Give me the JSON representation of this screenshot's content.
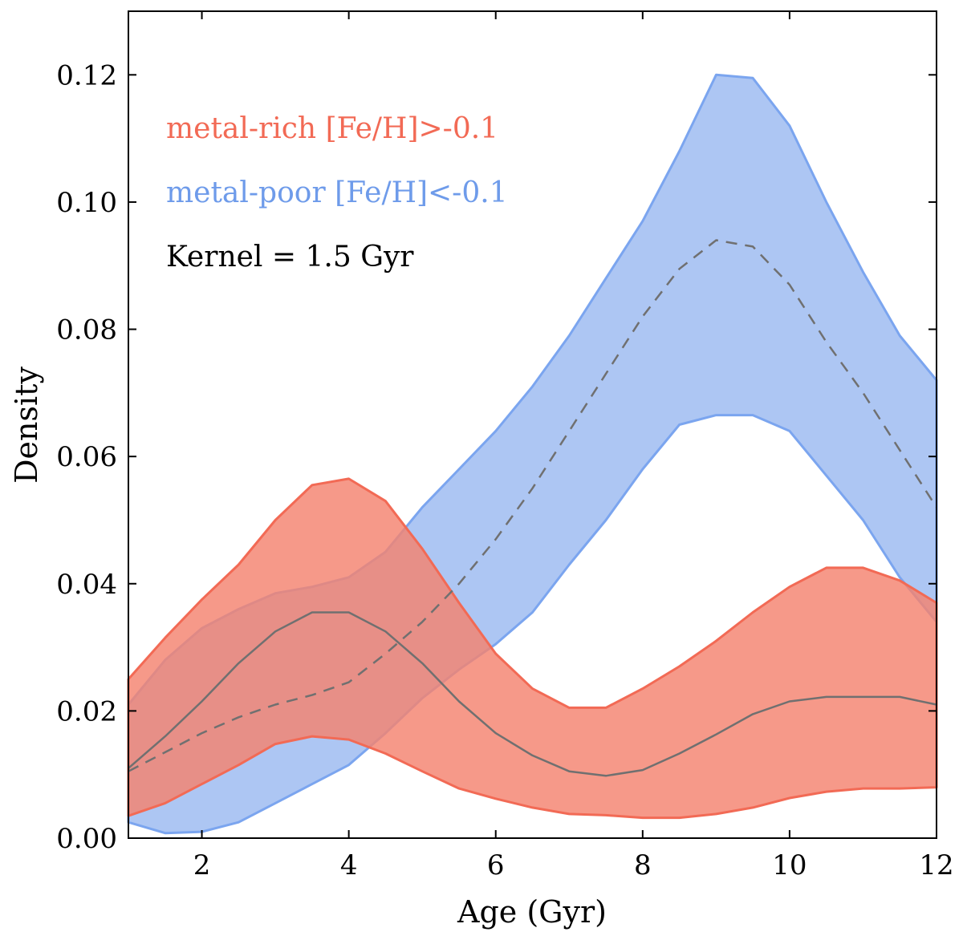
{
  "chart_data": {
    "type": "area",
    "title": "",
    "xlabel": "Age (Gyr)",
    "ylabel": "Density",
    "xlim": [
      1,
      12
    ],
    "ylim": [
      0,
      0.13
    ],
    "xticks": [
      2,
      4,
      6,
      8,
      10,
      12
    ],
    "xtick_labels": [
      "2",
      "4",
      "6",
      "8",
      "10",
      "12"
    ],
    "yticks": [
      0.0,
      0.02,
      0.04,
      0.06,
      0.08,
      0.1,
      0.12
    ],
    "ytick_labels": [
      "0.00",
      "0.02",
      "0.04",
      "0.06",
      "0.08",
      "0.10",
      "0.12"
    ],
    "grid": false,
    "annotations": [
      {
        "text": "metal-rich [Fe/H]>-0.1",
        "color": "#f26a55"
      },
      {
        "text": "metal-poor [Fe/H]<-0.1",
        "color": "#6e9bea"
      },
      {
        "text": "Kernel = 1.5 Gyr",
        "color": "#000000"
      }
    ],
    "series": [
      {
        "name": "metal-poor [Fe/H]<-0.1",
        "fill": "#a9c3f2",
        "edge": "#7ba5ef",
        "x": [
          1,
          1.5,
          2,
          2.5,
          3,
          3.5,
          4,
          4.5,
          5,
          5.5,
          6,
          6.5,
          7,
          7.5,
          8,
          8.5,
          9,
          9.5,
          10,
          10.5,
          11,
          11.5,
          12
        ],
        "upper": [
          0.021,
          0.028,
          0.033,
          0.036,
          0.0385,
          0.0395,
          0.041,
          0.045,
          0.052,
          0.058,
          0.064,
          0.071,
          0.079,
          0.088,
          0.097,
          0.108,
          0.12,
          0.1195,
          0.112,
          0.1,
          0.089,
          0.079,
          0.072
        ],
        "median": [
          0.0105,
          0.0135,
          0.0165,
          0.019,
          0.021,
          0.0225,
          0.0245,
          0.029,
          0.034,
          0.04,
          0.047,
          0.055,
          0.064,
          0.073,
          0.082,
          0.0895,
          0.094,
          0.093,
          0.087,
          0.078,
          0.07,
          0.061,
          0.052
        ],
        "lower": [
          0.0025,
          0.0008,
          0.001,
          0.0025,
          0.0055,
          0.0085,
          0.0115,
          0.0165,
          0.022,
          0.0265,
          0.0305,
          0.0355,
          0.043,
          0.05,
          0.058,
          0.065,
          0.0665,
          0.0665,
          0.064,
          0.057,
          0.05,
          0.041,
          0.034
        ]
      },
      {
        "name": "metal-rich [Fe/H]>-0.1",
        "fill": "#f4836f",
        "edge": "#f26a55",
        "x": [
          1,
          1.5,
          2,
          2.5,
          3,
          3.5,
          4,
          4.5,
          5,
          5.5,
          6,
          6.5,
          7,
          7.5,
          8,
          8.5,
          9,
          9.5,
          10,
          10.5,
          11,
          11.5,
          12
        ],
        "upper": [
          0.025,
          0.0315,
          0.0375,
          0.043,
          0.05,
          0.0555,
          0.0565,
          0.053,
          0.0455,
          0.037,
          0.029,
          0.0235,
          0.0205,
          0.0205,
          0.0235,
          0.027,
          0.031,
          0.0355,
          0.0395,
          0.0425,
          0.0425,
          0.0405,
          0.037
        ],
        "median": [
          0.011,
          0.016,
          0.0215,
          0.0275,
          0.0325,
          0.0355,
          0.0355,
          0.0325,
          0.0275,
          0.0215,
          0.0165,
          0.013,
          0.0105,
          0.0098,
          0.0107,
          0.0133,
          0.0163,
          0.0195,
          0.0215,
          0.0222,
          0.0222,
          0.0222,
          0.021
        ],
        "lower": [
          0.0035,
          0.0055,
          0.0085,
          0.0115,
          0.0148,
          0.016,
          0.0155,
          0.0133,
          0.0105,
          0.0078,
          0.0062,
          0.0048,
          0.0038,
          0.0036,
          0.0032,
          0.0032,
          0.0038,
          0.0048,
          0.0063,
          0.0073,
          0.0078,
          0.0078,
          0.008
        ]
      }
    ]
  }
}
